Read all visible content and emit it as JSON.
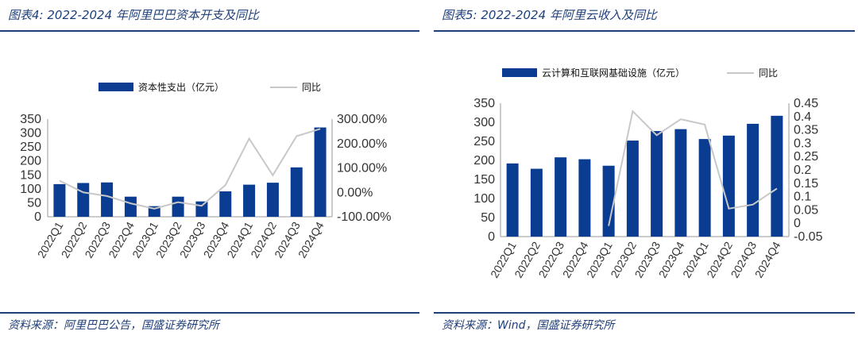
{
  "left": {
    "title": "图表4:  2022-2024 年阿里巴巴资本开支及同比",
    "source": "资料来源：阿里巴巴公告，国盛证券研究所"
  },
  "right": {
    "title": "图表5:  2022-2024 年阿里云收入及同比",
    "source": "资料来源：Wind，国盛证券研究所"
  },
  "colors": {
    "bar": "#0a3d91",
    "line": "#c8c8c8",
    "accent": "#1f3f7a"
  },
  "chart_data": [
    {
      "type": "bar",
      "categories": [
        "2022Q1",
        "2022Q2",
        "2022Q3",
        "2022Q4",
        "2023Q1",
        "2023Q2",
        "2023Q3",
        "2023Q4",
        "2024Q1",
        "2024Q2",
        "2024Q3",
        "2024Q4"
      ],
      "series": [
        {
          "name": "资本性支出（亿元）",
          "type": "bar",
          "axis": "left",
          "values": [
            117,
            121,
            123,
            72,
            38,
            72,
            55,
            91,
            115,
            122,
            177,
            320
          ]
        },
        {
          "name": "同比",
          "type": "line",
          "axis": "right",
          "values": [
            0.48,
            0.0,
            -0.15,
            -0.45,
            -0.67,
            -0.4,
            -0.55,
            0.3,
            2.2,
            0.7,
            2.3,
            2.6
          ]
        }
      ],
      "ylim": [
        0,
        350
      ],
      "yticks": [
        "350",
        "300",
        "250",
        "200",
        "150",
        "100",
        "50",
        "0"
      ],
      "y2lim": [
        -1.0,
        3.0
      ],
      "y2ticks": [
        "300.00%",
        "200.00%",
        "100.00%",
        "0.00%",
        "-100.00%"
      ],
      "legend": "top-center",
      "grid": false
    },
    {
      "type": "bar",
      "categories": [
        "2022Q1",
        "2022Q2",
        "2022Q3",
        "2022Q4",
        "2023Q1",
        "2023Q2",
        "2023Q3",
        "2023Q4",
        "2024Q1",
        "2024Q2",
        "2024Q3",
        "2024Q4"
      ],
      "series": [
        {
          "name": "云计算和互联网基础设施（亿元）",
          "type": "bar",
          "axis": "left",
          "values": [
            192,
            178,
            208,
            203,
            186,
            252,
            277,
            282,
            256,
            265,
            296,
            317
          ]
        },
        {
          "name": "同比",
          "type": "line",
          "axis": "right",
          "values": [
            null,
            null,
            null,
            null,
            -0.01,
            0.42,
            0.33,
            0.39,
            0.37,
            0.055,
            0.07,
            0.13
          ]
        }
      ],
      "ylim": [
        0,
        350
      ],
      "yticks": [
        "350",
        "300",
        "250",
        "200",
        "150",
        "100",
        "50",
        "0"
      ],
      "y2lim": [
        -0.05,
        0.45
      ],
      "y2ticks": [
        "0.45",
        "0.4",
        "0.35",
        "0.3",
        "0.25",
        "0.2",
        "0.15",
        "0.1",
        "0.05",
        "0",
        "-0.05"
      ],
      "legend": "top-center",
      "grid": false
    }
  ]
}
